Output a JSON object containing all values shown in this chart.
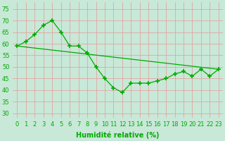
{
  "xlabel": "Humidité relative (%)",
  "x": [
    0,
    1,
    2,
    3,
    4,
    5,
    6,
    7,
    8,
    9,
    10,
    11,
    12,
    13,
    14,
    15,
    16,
    17,
    18,
    19,
    20,
    21,
    22,
    23
  ],
  "line1": [
    59,
    61,
    64,
    68,
    70,
    65,
    59,
    59,
    56,
    50,
    45,
    41,
    39,
    43,
    43,
    43,
    44,
    45,
    47,
    48,
    46,
    49,
    46,
    49
  ],
  "line2_x": [
    0,
    23
  ],
  "line2_y": [
    59,
    49
  ],
  "line_color": "#00aa00",
  "bg_color": "#c8e8d8",
  "grid_color_h": "#e89898",
  "grid_color_v": "#e89898",
  "ylim": [
    28,
    78
  ],
  "yticks": [
    30,
    35,
    40,
    45,
    50,
    55,
    60,
    65,
    70,
    75
  ],
  "xticks": [
    0,
    1,
    2,
    3,
    4,
    5,
    6,
    7,
    8,
    9,
    10,
    11,
    12,
    13,
    14,
    15,
    16,
    17,
    18,
    19,
    20,
    21,
    22,
    23
  ],
  "marker": "+",
  "markersize": 4,
  "linewidth": 0.9,
  "xlabel_fontsize": 7,
  "tick_fontsize": 6
}
